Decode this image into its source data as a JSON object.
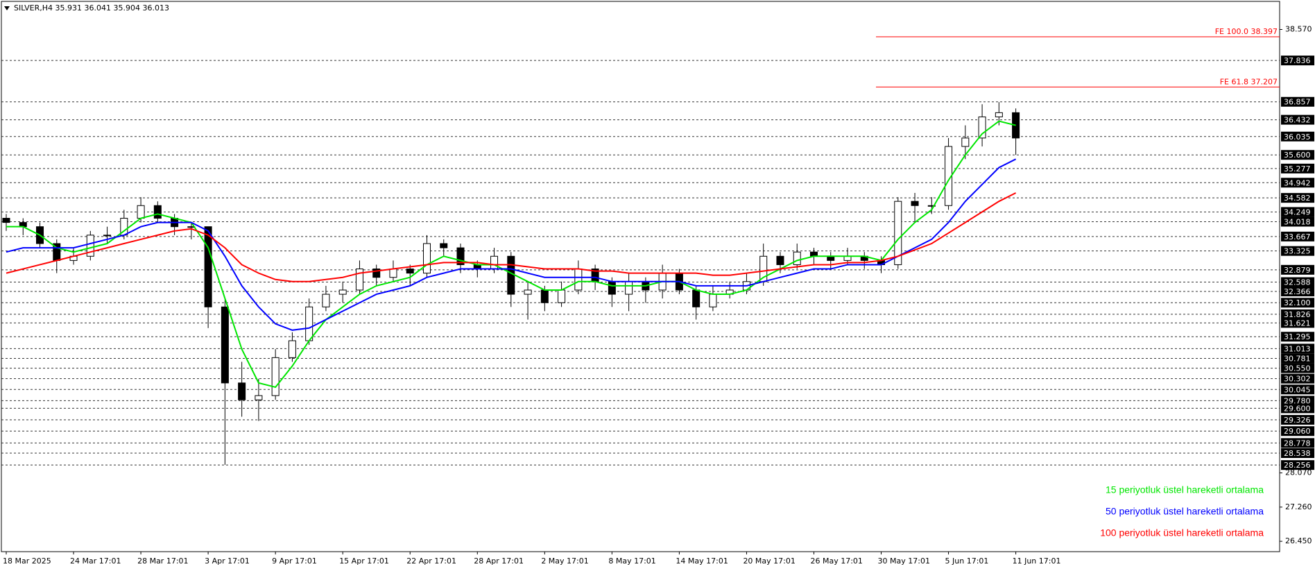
{
  "chart_data": {
    "type": "candlestick",
    "title": "SILVER,H4  35.931 36.041 35.904 36.013",
    "categories": [
      "18 Mar 2025",
      null,
      null,
      null,
      "24 Mar 17:01",
      null,
      null,
      null,
      "28 Mar 17:01",
      null,
      null,
      null,
      "3 Apr 17:01",
      null,
      null,
      null,
      "9 Apr 17:01",
      null,
      null,
      null,
      "15 Apr 17:01",
      null,
      null,
      null,
      "22 Apr 17:01",
      null,
      null,
      null,
      "28 Apr 17:01",
      null,
      null,
      null,
      "2 May 17:01",
      null,
      null,
      null,
      "8 May 17:01",
      null,
      null,
      null,
      "14 May 17:01",
      null,
      null,
      null,
      "20 May 17:01",
      null,
      null,
      null,
      "26 May 17:01",
      null,
      null,
      null,
      "30 May 17:01",
      null,
      null,
      null,
      "5 Jun 17:01",
      null,
      null,
      null,
      "11 Jun 17:01"
    ],
    "open": [
      34.1,
      34.0,
      33.9,
      33.5,
      33.1,
      33.2,
      33.7,
      33.7,
      34.1,
      34.4,
      34.1,
      33.9,
      33.9,
      32.0,
      30.2,
      29.8,
      29.9,
      30.8,
      31.2,
      32.0,
      32.3,
      32.4,
      32.9,
      32.7,
      32.9,
      32.8,
      33.5,
      33.4,
      33.0,
      32.9,
      33.2,
      32.3,
      32.4,
      32.1,
      32.4,
      32.9,
      32.6,
      32.3,
      32.6,
      32.4,
      32.8,
      32.4,
      32.0,
      32.3,
      32.4,
      32.6,
      33.2,
      33.0,
      33.3,
      33.2,
      33.1,
      33.2,
      33.1,
      33.0,
      34.5,
      34.4,
      34.4,
      35.8,
      36.0,
      36.5,
      36.6
    ],
    "high": [
      34.2,
      34.1,
      34.0,
      33.6,
      33.4,
      33.8,
      33.9,
      34.3,
      34.6,
      34.5,
      34.2,
      34.0,
      33.9,
      32.2,
      30.7,
      30.3,
      31.0,
      31.4,
      32.2,
      32.5,
      32.6,
      33.1,
      33.0,
      33.1,
      33.0,
      33.7,
      33.6,
      33.5,
      33.1,
      33.4,
      33.3,
      32.6,
      32.5,
      32.6,
      33.1,
      33.0,
      32.7,
      32.8,
      32.7,
      33.0,
      32.9,
      32.5,
      32.5,
      32.6,
      32.8,
      33.5,
      33.3,
      33.5,
      33.4,
      33.3,
      33.4,
      33.3,
      33.2,
      34.6,
      34.7,
      34.6,
      36.0,
      36.3,
      36.8,
      36.85,
      36.7
    ],
    "low": [
      33.8,
      33.7,
      33.4,
      32.8,
      33.0,
      33.1,
      33.5,
      33.6,
      34.0,
      34.0,
      33.7,
      33.6,
      31.5,
      28.26,
      29.4,
      29.3,
      29.8,
      30.7,
      31.1,
      31.9,
      32.1,
      32.3,
      32.5,
      32.6,
      32.5,
      32.7,
      33.2,
      32.8,
      32.7,
      32.8,
      32.0,
      31.7,
      31.9,
      32.0,
      32.3,
      32.4,
      32.0,
      31.9,
      32.1,
      32.2,
      32.3,
      31.7,
      31.9,
      32.2,
      32.3,
      32.5,
      32.8,
      32.9,
      33.0,
      32.9,
      33.0,
      32.9,
      32.8,
      32.9,
      34.0,
      34.2,
      34.3,
      35.5,
      35.8,
      36.3,
      35.6
    ],
    "close": [
      34.0,
      33.9,
      33.5,
      33.1,
      33.2,
      33.7,
      33.7,
      34.1,
      34.4,
      34.1,
      33.9,
      33.9,
      32.0,
      30.2,
      29.8,
      29.9,
      30.8,
      31.2,
      32.0,
      32.3,
      32.4,
      32.9,
      32.7,
      32.9,
      32.8,
      33.5,
      33.4,
      33.0,
      32.9,
      33.2,
      32.3,
      32.4,
      32.1,
      32.4,
      32.9,
      32.6,
      32.3,
      32.6,
      32.4,
      32.8,
      32.4,
      32.0,
      32.3,
      32.4,
      32.6,
      33.2,
      33.0,
      33.3,
      33.2,
      33.1,
      33.2,
      33.1,
      33.0,
      34.5,
      34.4,
      34.4,
      35.8,
      36.0,
      36.5,
      36.6,
      36.0
    ],
    "series": [
      {
        "name": "15 periyotluk üstel hareketli ortalama",
        "color": "#00e600",
        "values": [
          33.9,
          33.9,
          33.7,
          33.4,
          33.3,
          33.4,
          33.5,
          33.8,
          34.1,
          34.2,
          34.1,
          34.0,
          33.4,
          32.2,
          31.0,
          30.2,
          30.1,
          30.6,
          31.2,
          31.7,
          32.0,
          32.3,
          32.5,
          32.6,
          32.7,
          33.0,
          33.2,
          33.1,
          33.0,
          33.0,
          32.8,
          32.6,
          32.4,
          32.4,
          32.6,
          32.6,
          32.5,
          32.5,
          32.5,
          32.6,
          32.6,
          32.4,
          32.3,
          32.3,
          32.4,
          32.7,
          32.9,
          33.1,
          33.2,
          33.2,
          33.2,
          33.2,
          33.1,
          33.6,
          34.0,
          34.3,
          35.0,
          35.6,
          36.1,
          36.4,
          36.3
        ]
      },
      {
        "name": "50 periyotluk üstel hareketli ortalama",
        "color": "#0000ff",
        "values": [
          33.3,
          33.4,
          33.4,
          33.4,
          33.4,
          33.5,
          33.6,
          33.7,
          33.9,
          34.0,
          34.0,
          34.0,
          33.8,
          33.2,
          32.5,
          32.0,
          31.6,
          31.45,
          31.5,
          31.7,
          31.9,
          32.1,
          32.3,
          32.4,
          32.5,
          32.7,
          32.8,
          32.9,
          32.9,
          32.9,
          32.9,
          32.8,
          32.7,
          32.7,
          32.7,
          32.7,
          32.6,
          32.6,
          32.6,
          32.6,
          32.6,
          32.5,
          32.5,
          32.5,
          32.5,
          32.6,
          32.7,
          32.8,
          32.9,
          32.9,
          33.0,
          33.0,
          33.0,
          33.2,
          33.4,
          33.6,
          34.0,
          34.5,
          34.9,
          35.3,
          35.5
        ]
      },
      {
        "name": "100 periyotluk üstel hareketli ortalama",
        "color": "#ff0000",
        "values": [
          32.8,
          32.9,
          33.0,
          33.1,
          33.2,
          33.3,
          33.4,
          33.5,
          33.6,
          33.7,
          33.8,
          33.85,
          33.7,
          33.4,
          33.0,
          32.8,
          32.65,
          32.6,
          32.6,
          32.65,
          32.7,
          32.8,
          32.85,
          32.9,
          32.95,
          33.0,
          33.05,
          33.05,
          33.05,
          33.0,
          33.0,
          32.95,
          32.9,
          32.9,
          32.9,
          32.85,
          32.85,
          32.8,
          32.8,
          32.8,
          32.8,
          32.8,
          32.75,
          32.75,
          32.8,
          32.85,
          32.9,
          32.95,
          33.0,
          33.0,
          33.05,
          33.05,
          33.1,
          33.2,
          33.35,
          33.5,
          33.75,
          34.0,
          34.25,
          34.5,
          34.7
        ]
      }
    ],
    "ylim": [
      26.205,
      39.235
    ],
    "yticks": [
      {
        "value": 26.45,
        "label": "26.450"
      },
      {
        "value": 27.26,
        "label": "27.260"
      },
      {
        "value": 28.07,
        "label": "28.070"
      },
      {
        "value": 38.57,
        "label": "38.570"
      }
    ],
    "levels": [
      37.836,
      36.857,
      36.432,
      36.035,
      {
        "value": 35.6,
        "label": "35.600"
      },
      35.277,
      34.942,
      34.582,
      34.249,
      34.018,
      33.667,
      33.325,
      32.879,
      32.588,
      32.366,
      {
        "value": 32.1,
        "label": "32.100"
      },
      31.826,
      31.621,
      31.295,
      31.013,
      30.781,
      {
        "value": 30.55,
        "label": "30.550"
      },
      30.302,
      30.045,
      {
        "value": 29.78,
        "label": "29.780"
      },
      {
        "value": 29.6,
        "label": "29.600"
      },
      29.326,
      {
        "value": 29.06,
        "label": "29.060"
      },
      28.778,
      28.538,
      28.256
    ],
    "fib_levels": [
      {
        "value": 38.397,
        "label": "FE 100.0 38.397"
      },
      {
        "value": 37.207,
        "label": "FE 61.8 37.207"
      }
    ],
    "fib_color": "#ff0000",
    "up_color": "#ffffff",
    "down_color": "#000000"
  }
}
